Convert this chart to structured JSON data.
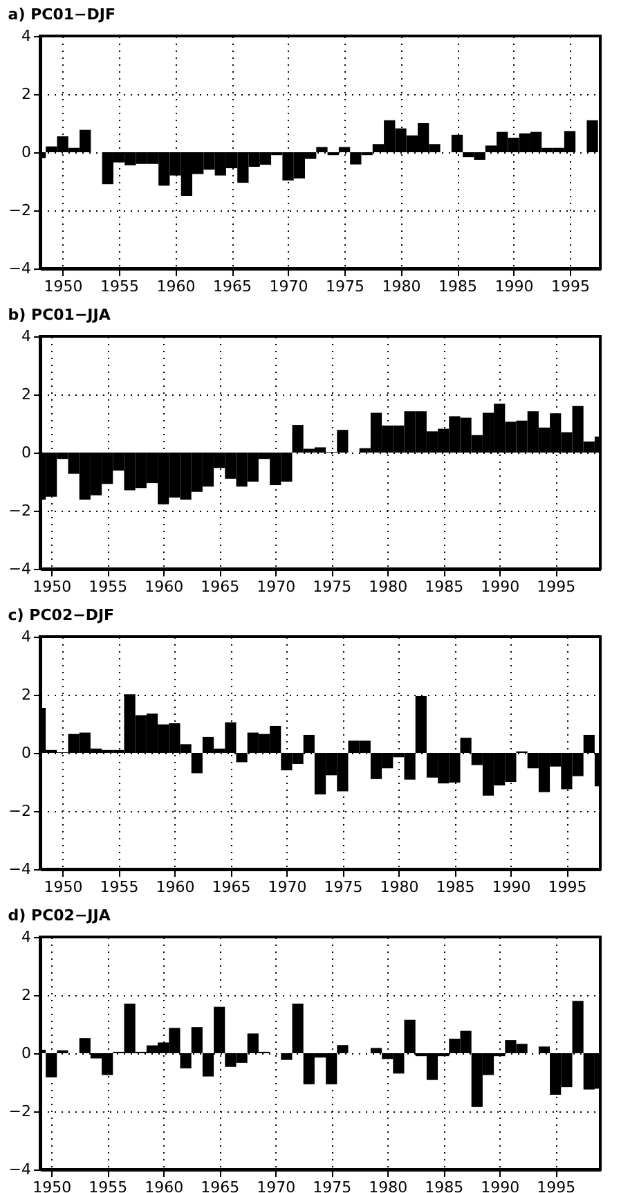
{
  "chart_data": [
    {
      "type": "bar",
      "title": "a) PC01−DJF",
      "color": "#000000",
      "xlim": [
        1948,
        1997.7
      ],
      "ylim": [
        -4,
        4
      ],
      "xticks": [
        1950,
        1955,
        1960,
        1965,
        1970,
        1975,
        1980,
        1985,
        1990,
        1995
      ],
      "yticks": [
        -4,
        -2,
        0,
        2,
        4
      ],
      "grid": true,
      "x": [
        1948,
        1949,
        1950,
        1951,
        1952,
        1953,
        1954,
        1955,
        1956,
        1957,
        1958,
        1959,
        1960,
        1961,
        1962,
        1963,
        1964,
        1965,
        1966,
        1967,
        1968,
        1969,
        1970,
        1971,
        1972,
        1973,
        1974,
        1975,
        1976,
        1977,
        1978,
        1979,
        1980,
        1981,
        1982,
        1983,
        1984,
        1985,
        1986,
        1987,
        1988,
        1989,
        1990,
        1991,
        1992,
        1993,
        1994,
        1995,
        1996,
        1997
      ],
      "values": [
        -0.2,
        0.2,
        0.55,
        0.15,
        0.77,
        0.0,
        -1.1,
        -0.35,
        -0.45,
        -0.4,
        -0.4,
        -1.15,
        -0.8,
        -1.5,
        -0.75,
        -0.6,
        -0.8,
        -0.55,
        -1.05,
        -0.5,
        -0.43,
        -0.1,
        -0.97,
        -0.9,
        -0.23,
        0.18,
        -0.1,
        0.18,
        -0.42,
        -0.1,
        0.28,
        1.1,
        0.82,
        0.58,
        1.0,
        0.28,
        0.0,
        0.6,
        -0.17,
        -0.26,
        0.23,
        0.7,
        0.5,
        0.65,
        0.7,
        0.15,
        0.15,
        0.73,
        0.0,
        1.1
      ]
    },
    {
      "type": "bar",
      "title": "b) PC01−JJA",
      "color": "#000000",
      "xlim": [
        1949,
        1999
      ],
      "ylim": [
        -4,
        4
      ],
      "xticks": [
        1950,
        1955,
        1960,
        1965,
        1970,
        1975,
        1980,
        1985,
        1990,
        1995
      ],
      "yticks": [
        -4,
        -2,
        0,
        2,
        4
      ],
      "grid": true,
      "x": [
        1949,
        1950,
        1951,
        1952,
        1953,
        1954,
        1955,
        1956,
        1957,
        1958,
        1959,
        1960,
        1961,
        1962,
        1963,
        1964,
        1965,
        1966,
        1967,
        1968,
        1969,
        1970,
        1971,
        1972,
        1973,
        1974,
        1975,
        1976,
        1977,
        1978,
        1979,
        1980,
        1981,
        1982,
        1983,
        1984,
        1985,
        1986,
        1987,
        1988,
        1989,
        1990,
        1991,
        1992,
        1993,
        1994,
        1995,
        1996,
        1997,
        1998,
        1999
      ],
      "values": [
        -1.62,
        -1.52,
        -0.22,
        -0.73,
        -1.62,
        -1.47,
        -1.08,
        -0.62,
        -1.3,
        -1.22,
        -1.05,
        -1.78,
        -1.55,
        -1.62,
        -1.35,
        -1.17,
        -0.53,
        -0.9,
        -1.17,
        -1.0,
        -0.22,
        -1.12,
        -1.0,
        0.95,
        0.13,
        0.18,
        0.02,
        0.78,
        0.0,
        0.15,
        1.37,
        0.93,
        0.93,
        1.42,
        1.42,
        0.73,
        0.82,
        1.25,
        1.2,
        0.6,
        1.37,
        1.68,
        1.06,
        1.1,
        1.42,
        0.86,
        1.35,
        0.7,
        1.6,
        0.38,
        0.55
      ]
    },
    {
      "type": "bar",
      "title": "c) PC02−DJF",
      "color": "#000000",
      "xlim": [
        1948,
        1998
      ],
      "ylim": [
        -4,
        4
      ],
      "xticks": [
        1950,
        1955,
        1960,
        1965,
        1970,
        1975,
        1980,
        1985,
        1990,
        1995
      ],
      "yticks": [
        -4,
        -2,
        0,
        2,
        4
      ],
      "grid": true,
      "x": [
        1948,
        1949,
        1950,
        1951,
        1952,
        1953,
        1954,
        1955,
        1956,
        1957,
        1958,
        1959,
        1960,
        1961,
        1962,
        1963,
        1964,
        1965,
        1966,
        1967,
        1968,
        1969,
        1970,
        1971,
        1972,
        1973,
        1974,
        1975,
        1976,
        1977,
        1978,
        1979,
        1980,
        1981,
        1982,
        1983,
        1984,
        1985,
        1986,
        1987,
        1988,
        1989,
        1990,
        1991,
        1992,
        1993,
        1994,
        1995,
        1996,
        1997,
        1998
      ],
      "values": [
        1.55,
        0.1,
        0.02,
        0.65,
        0.7,
        0.15,
        0.1,
        0.1,
        2.02,
        1.3,
        1.35,
        0.98,
        1.02,
        0.3,
        -0.7,
        0.55,
        0.15,
        1.05,
        -0.32,
        0.7,
        0.65,
        0.93,
        -0.6,
        -0.38,
        0.62,
        -1.43,
        -0.77,
        -1.32,
        0.42,
        0.42,
        -0.9,
        -0.53,
        -0.15,
        -0.92,
        1.95,
        -0.85,
        -1.05,
        -1.02,
        0.52,
        -0.42,
        -1.47,
        -1.12,
        -1.0,
        0.05,
        -0.53,
        -1.35,
        -0.47,
        -1.25,
        -0.8,
        0.62,
        -1.15
      ]
    },
    {
      "type": "bar",
      "title": "d) PC02−JJA",
      "color": "#000000",
      "xlim": [
        1949,
        1999
      ],
      "ylim": [
        -4,
        4
      ],
      "xticks": [
        1950,
        1955,
        1960,
        1965,
        1970,
        1975,
        1980,
        1985,
        1990,
        1995
      ],
      "yticks": [
        -4,
        -2,
        0,
        2,
        4
      ],
      "grid": true,
      "x": [
        1949,
        1950,
        1951,
        1952,
        1953,
        1954,
        1955,
        1956,
        1957,
        1958,
        1959,
        1960,
        1961,
        1962,
        1963,
        1964,
        1965,
        1966,
        1967,
        1968,
        1969,
        1970,
        1971,
        1972,
        1973,
        1974,
        1975,
        1976,
        1977,
        1978,
        1979,
        1980,
        1981,
        1982,
        1983,
        1984,
        1985,
        1986,
        1987,
        1988,
        1989,
        1990,
        1991,
        1992,
        1993,
        1994,
        1995,
        1996,
        1997,
        1998,
        1999
      ],
      "values": [
        0.12,
        -0.83,
        0.1,
        0.0,
        0.52,
        -0.18,
        -0.75,
        0.05,
        1.7,
        0.05,
        0.27,
        0.37,
        0.87,
        -0.52,
        0.9,
        -0.8,
        1.6,
        -0.47,
        -0.33,
        0.68,
        0.05,
        0.0,
        -0.23,
        1.7,
        -1.07,
        -0.15,
        -1.07,
        0.28,
        0.0,
        0.0,
        0.18,
        -0.2,
        -0.7,
        1.15,
        -0.1,
        -0.92,
        -0.1,
        0.5,
        0.77,
        -1.85,
        -0.75,
        -0.1,
        0.45,
        0.32,
        0.0,
        0.23,
        -1.43,
        -1.17,
        1.8,
        -1.25,
        -1.22
      ]
    }
  ]
}
